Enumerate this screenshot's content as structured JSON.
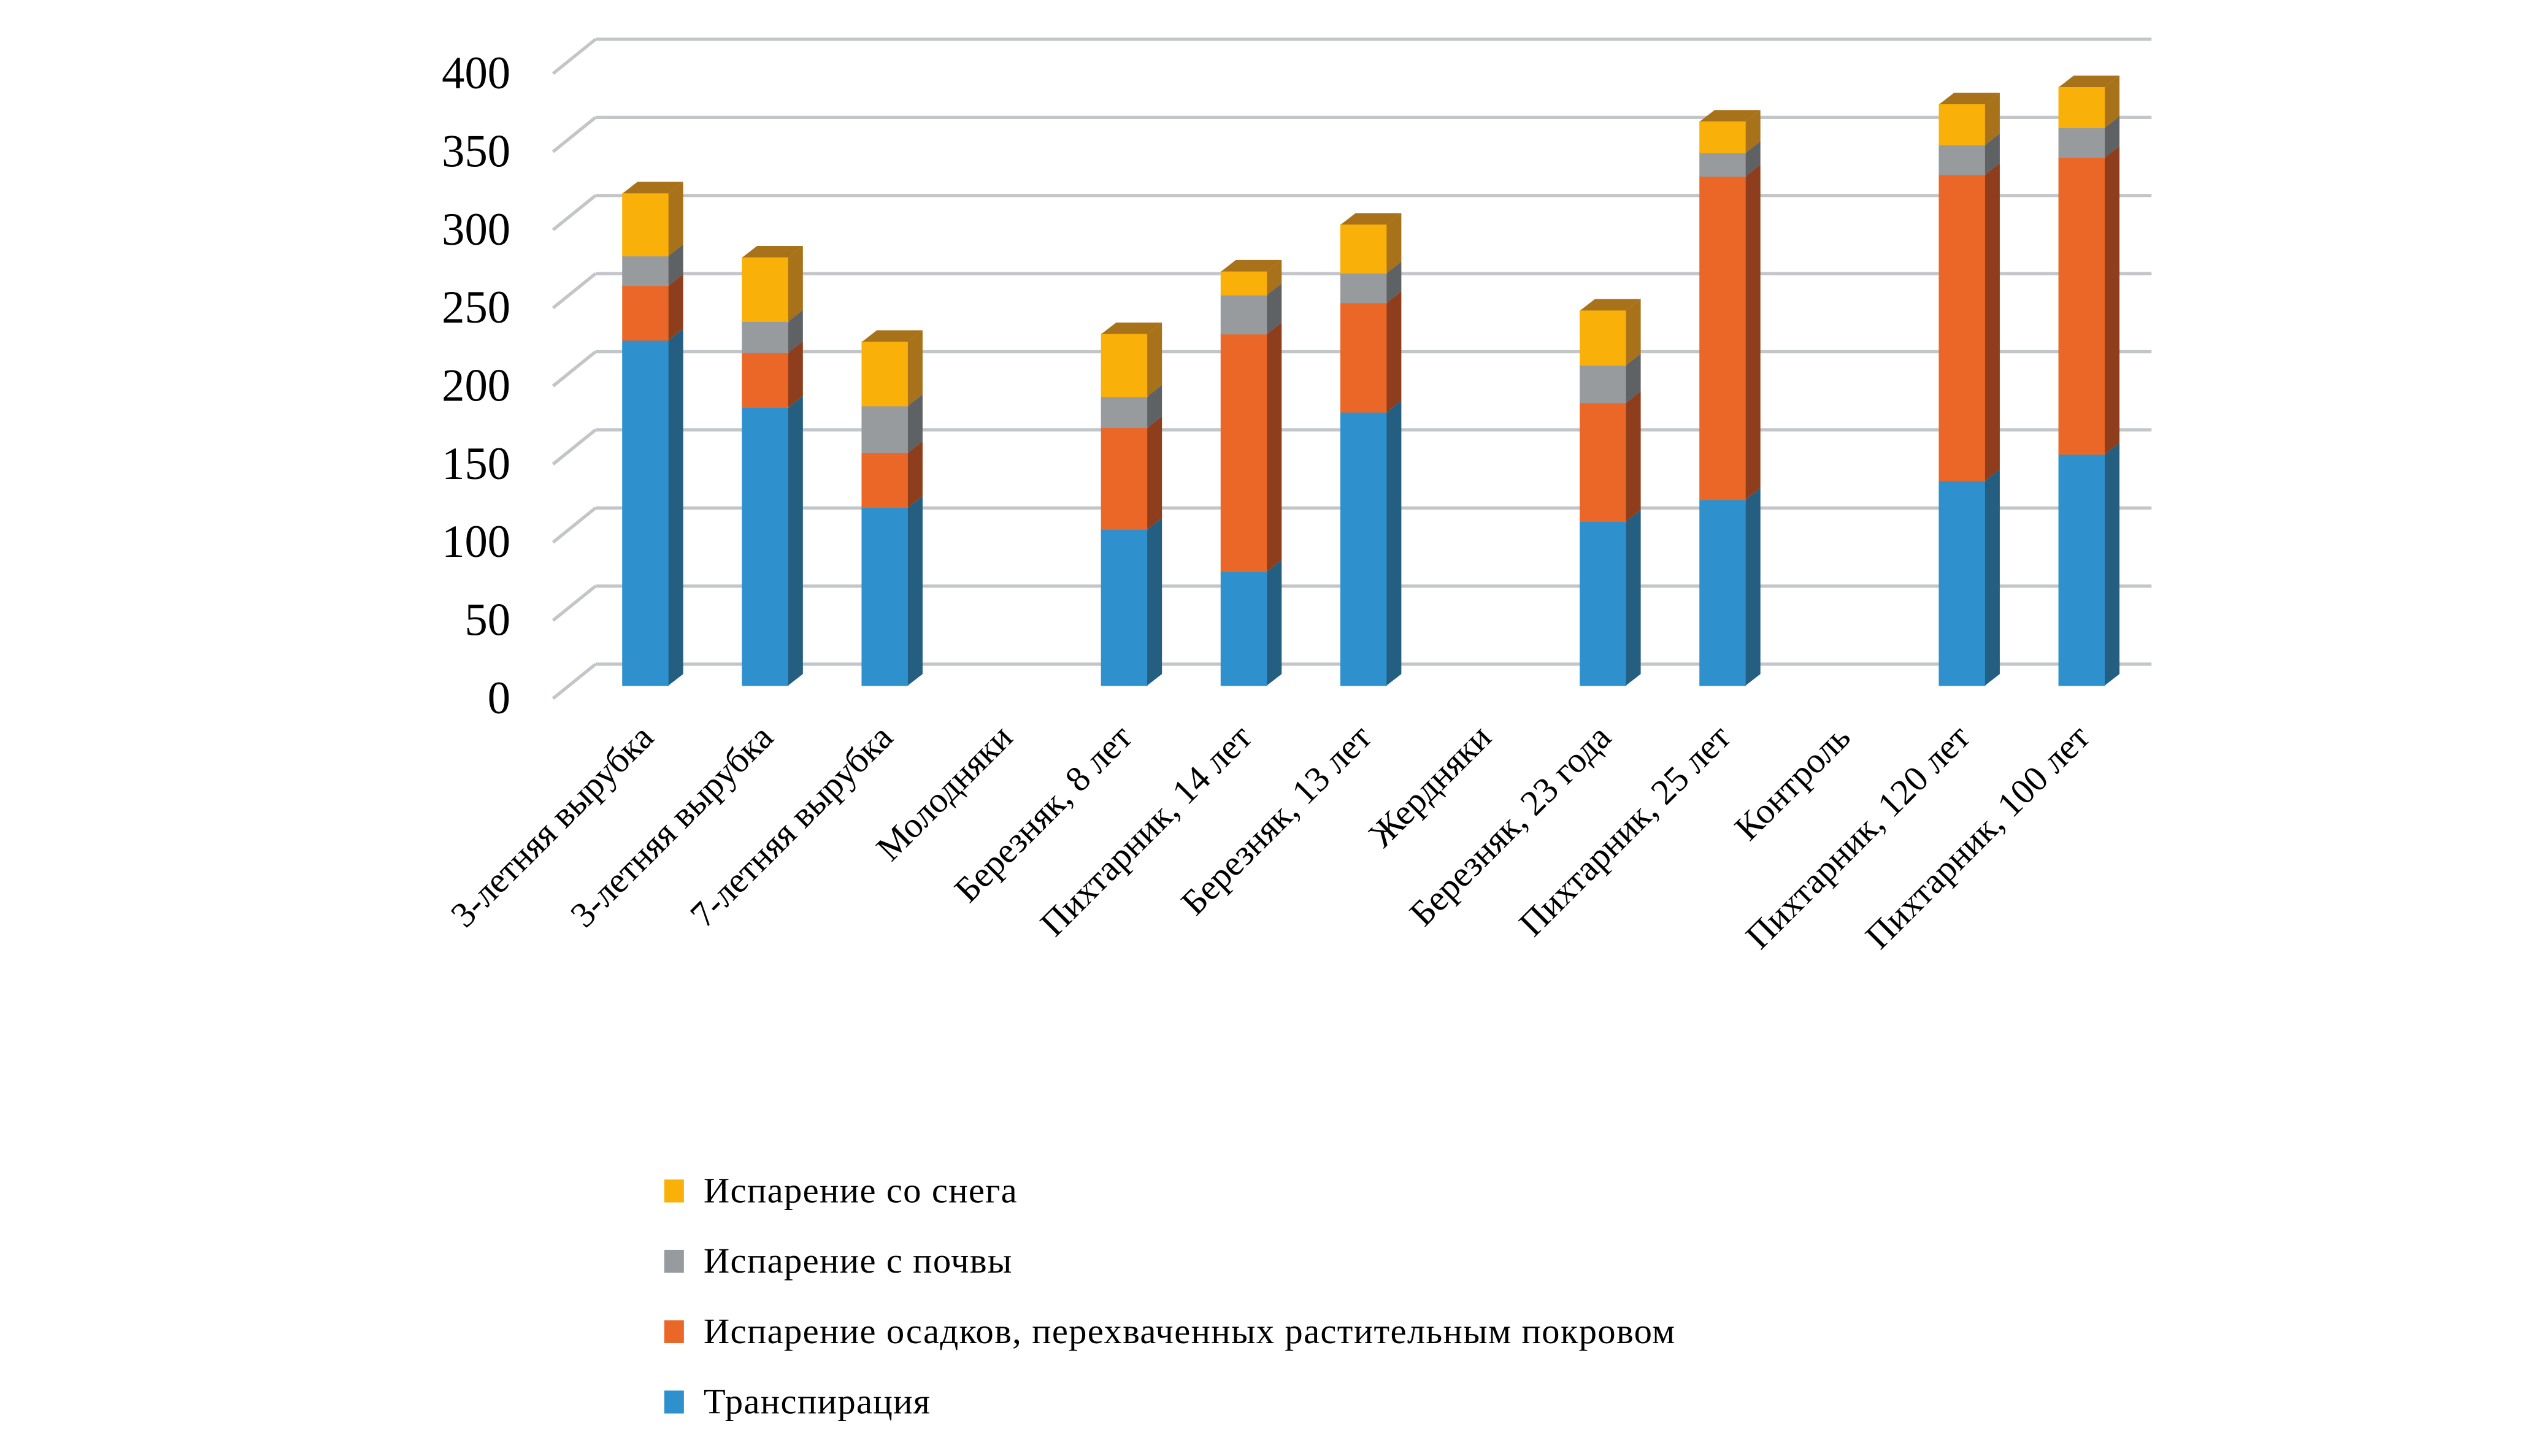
{
  "chart_data": {
    "type": "bar",
    "stacked": true,
    "style": "3d-column",
    "title": "",
    "xlabel": "",
    "ylabel": "",
    "ylim": [
      0,
      400
    ],
    "yticks": [
      0,
      50,
      100,
      150,
      200,
      250,
      300,
      350,
      400
    ],
    "grid": true,
    "legend_position": "bottom",
    "categories": [
      "3-летняя вырубка",
      "3-летняя вырубка",
      "7-летняя вырубка",
      "Молодняки",
      "Березняк, 8 лет",
      "Пихтарник, 14 лет",
      "Березняк, 13 лет",
      "Жердняки",
      "Березняк, 23 года",
      "Пихтарник, 25 лет",
      "Контроль",
      "Пихтарник, 120 лет",
      "Пихтарник, 100 лет"
    ],
    "series": [
      {
        "name": "Транспирация",
        "color": "#2E91CE",
        "side": "#245E80",
        "values": [
          221,
          178,
          114,
          null,
          100,
          73,
          175,
          null,
          105,
          119,
          null,
          131,
          148
        ]
      },
      {
        "name": "Испарение осадков, перехваченных растительным покровом",
        "color": "#EA6727",
        "side": "#8E3E1C",
        "values": [
          35,
          35,
          35,
          null,
          65,
          152,
          70,
          null,
          76,
          207,
          null,
          196,
          190
        ]
      },
      {
        "name": "Испарение с почвы",
        "color": "#989B9E",
        "side": "#5F6264",
        "values": [
          19,
          20,
          30,
          null,
          20,
          25,
          19,
          null,
          24,
          15,
          null,
          19,
          19
        ]
      },
      {
        "name": "Испарение со снега",
        "color": "#F9B008",
        "side": "#A8721A",
        "values": [
          40,
          41,
          41,
          null,
          40,
          15,
          31,
          null,
          35,
          20,
          null,
          26,
          26
        ]
      }
    ],
    "legend_order": [
      3,
      2,
      1,
      0
    ]
  }
}
